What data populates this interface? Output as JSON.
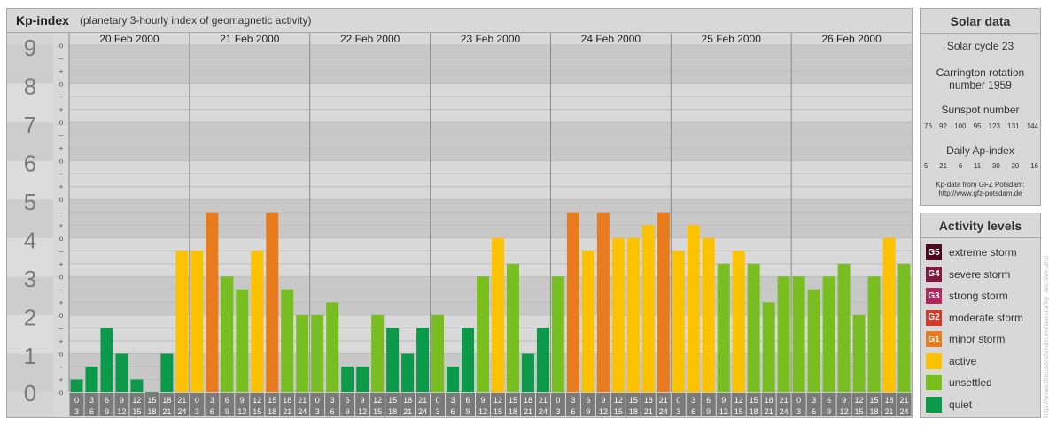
{
  "header": {
    "title": "Kp-index",
    "subtitle": "(planetary 3-hourly index of geomagnetic activity)"
  },
  "chart_data": {
    "type": "bar",
    "ylim": [
      0,
      9
    ],
    "y_tick_labels": [
      "0",
      "1",
      "2",
      "3",
      "4",
      "5",
      "6",
      "7",
      "8",
      "9"
    ],
    "minor_tick_labels": [
      "o",
      "+",
      "–",
      "o",
      "+",
      "–",
      "o",
      "+",
      "–",
      "o",
      "+",
      "–",
      "o",
      "+",
      "–",
      "o",
      "+",
      "–",
      "o",
      "+",
      "–",
      "o",
      "+",
      "–",
      "o",
      "+",
      "–",
      "o"
    ],
    "days": [
      "20 Feb 2000",
      "21 Feb 2000",
      "22 Feb 2000",
      "23 Feb 2000",
      "24 Feb 2000",
      "25 Feb 2000",
      "26 Feb 2000"
    ],
    "interval_starts": [
      "0",
      "3",
      "6",
      "9",
      "12",
      "15",
      "18",
      "21"
    ],
    "interval_ends": [
      "3",
      "6",
      "9",
      "12",
      "15",
      "18",
      "21",
      "24"
    ],
    "values": [
      0.333,
      0.667,
      1.667,
      1.0,
      0.333,
      0.0,
      1.0,
      3.667,
      3.667,
      4.667,
      3.0,
      2.667,
      3.667,
      4.667,
      2.667,
      2.0,
      2.0,
      2.333,
      0.667,
      0.667,
      2.0,
      1.667,
      1.0,
      1.667,
      2.0,
      0.667,
      1.667,
      3.0,
      4.0,
      3.333,
      1.0,
      1.667,
      3.0,
      4.667,
      3.667,
      4.667,
      4.0,
      4.0,
      4.333,
      4.667,
      3.667,
      4.333,
      4.0,
      3.333,
      3.667,
      3.333,
      2.333,
      3.0,
      3.0,
      2.667,
      3.0,
      3.333,
      2.0,
      3.0,
      4.0,
      3.333
    ],
    "level_colors": {
      "quiet": "#0a9a4a",
      "unsettled": "#78be20",
      "active": "#fcc200",
      "minor": "#e87b1e",
      "moderate": "#d33a2a",
      "strong": "#b5245a",
      "severe": "#7d1a3e",
      "extreme": "#4c0a22"
    }
  },
  "solar": {
    "title": "Solar data",
    "cycle": "Solar cycle 23",
    "rotation_line1": "Carrington rotation",
    "rotation_line2": "number 1959",
    "sunspot_title": "Sunspot number",
    "sunspot_values": [
      "76",
      "92",
      "100",
      "95",
      "123",
      "131",
      "144"
    ],
    "ap_title": "Daily Ap-index",
    "ap_values": [
      "5",
      "21",
      "6",
      "11",
      "30",
      "20",
      "16"
    ],
    "source_line1": "Kp-data from GFZ Potsdam:",
    "source_line2": "http://www.gfz-potsdam.de"
  },
  "activity": {
    "title": "Activity levels",
    "items": [
      {
        "code": "G5",
        "label": "extreme storm",
        "color": "#4c0a22"
      },
      {
        "code": "G4",
        "label": "severe storm",
        "color": "#7d1a3e"
      },
      {
        "code": "G3",
        "label": "strong storm",
        "color": "#b5245a"
      },
      {
        "code": "G2",
        "label": "moderate storm",
        "color": "#d33a2a"
      },
      {
        "code": "G1",
        "label": "minor storm",
        "color": "#e87b1e"
      },
      {
        "code": "",
        "label": "active",
        "color": "#fcc200"
      },
      {
        "code": "",
        "label": "unsettled",
        "color": "#78be20"
      },
      {
        "code": "",
        "label": "quiet",
        "color": "#0a9a4a"
      }
    ]
  },
  "watermark": "http://www.theusersforum.eu/aurora/kp_archive.php"
}
